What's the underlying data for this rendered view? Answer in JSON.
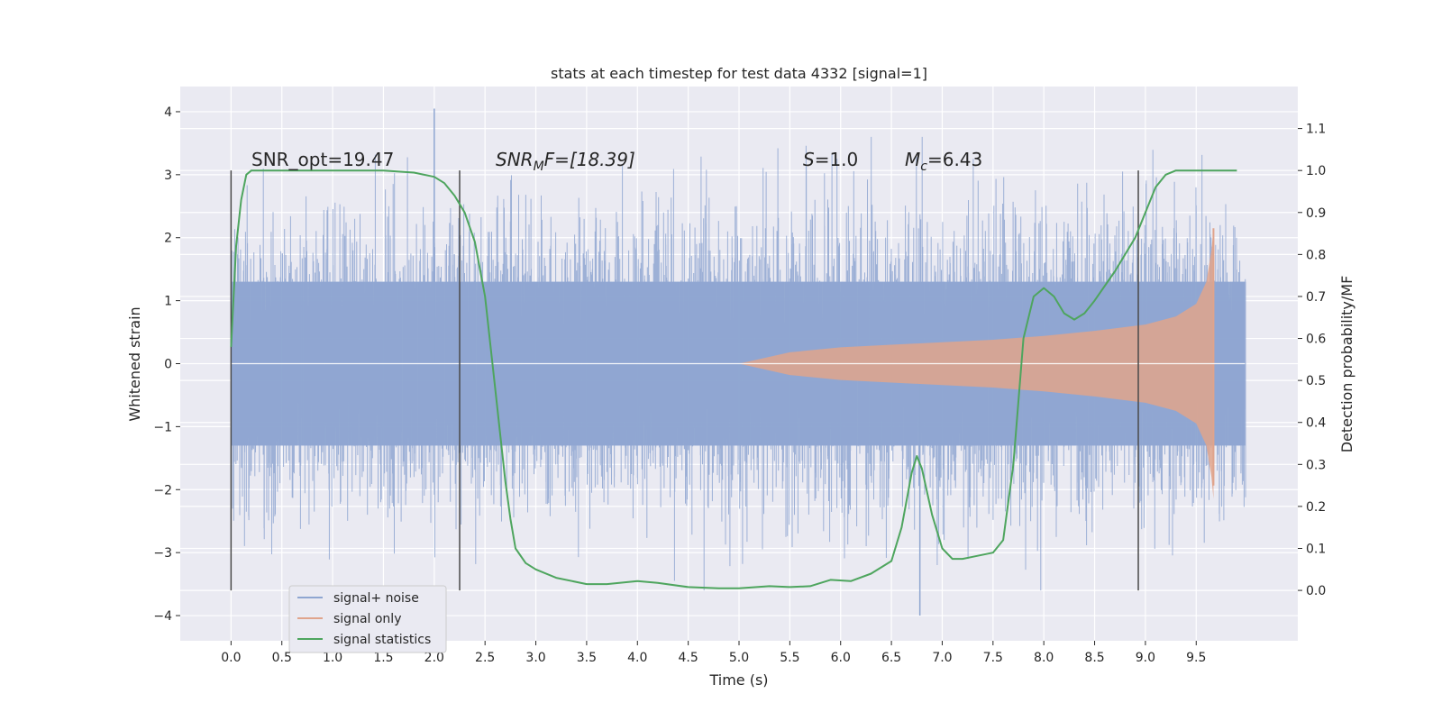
{
  "chart_data": {
    "type": "line",
    "title": "stats at each timestep for test data 4332 [signal=1]",
    "xlabel": "Time (s)",
    "ylabel": "Whitened strain",
    "ylabel_right": "Detection probability/MF",
    "xlim": [
      -0.5,
      10.5
    ],
    "ylim": [
      -4.4,
      4.4
    ],
    "ylim_right": [
      -0.12,
      1.2
    ],
    "x_ticks": [
      "0.0",
      "0.5",
      "1.0",
      "1.5",
      "2.0",
      "2.5",
      "3.0",
      "3.5",
      "4.0",
      "4.5",
      "5.0",
      "5.5",
      "6.0",
      "6.5",
      "7.0",
      "7.5",
      "8.0",
      "8.5",
      "9.0",
      "9.5"
    ],
    "x_tick_values": [
      0.0,
      0.5,
      1.0,
      1.5,
      2.0,
      2.5,
      3.0,
      3.5,
      4.0,
      4.5,
      5.0,
      5.5,
      6.0,
      6.5,
      7.0,
      7.5,
      8.0,
      8.5,
      9.0,
      9.5
    ],
    "y_ticks": [
      "−4",
      "−3",
      "−2",
      "−1",
      "0",
      "1",
      "2",
      "3",
      "4"
    ],
    "y_tick_values": [
      -4,
      -3,
      -2,
      -1,
      0,
      1,
      2,
      3,
      4
    ],
    "y_ticks_right": [
      "0.0",
      "0.1",
      "0.2",
      "0.3",
      "0.4",
      "0.5",
      "0.6",
      "0.7",
      "0.8",
      "0.9",
      "1.0",
      "1.1"
    ],
    "y_tick_values_right": [
      0.0,
      0.1,
      0.2,
      0.3,
      0.4,
      0.5,
      0.6,
      0.7,
      0.8,
      0.9,
      1.0,
      1.1
    ],
    "grid": true,
    "legend_position": "lower-left",
    "annotations": {
      "snr_opt": "SNR_opt=19.47",
      "snr_mf_main": "SNR",
      "snr_mf_sub": "M",
      "snr_mf_rest": "F=[18.39]",
      "s_main": "S",
      "s_rest": "=1.0",
      "mc_main": "M",
      "mc_sub": "c",
      "mc_rest": "=6.43"
    },
    "marker_lines_x": [
      0.0,
      2.25,
      8.93
    ],
    "series": [
      {
        "name": "signal+ noise",
        "color": "#8fa6d1",
        "axis": "left",
        "kind": "noise-band",
        "t_start": 0.0,
        "t_end": 9.98,
        "core_amplitude": 1.3,
        "typical_peaks": [
          -2.5,
          2.5
        ],
        "max_observed": 4.05,
        "min_observed": -4.0
      },
      {
        "name": "signal only",
        "color": "#e0a48c",
        "axis": "left",
        "kind": "chirp-envelope",
        "envelope": {
          "t": [
            5.0,
            5.5,
            6.0,
            6.5,
            7.0,
            7.5,
            8.0,
            8.5,
            9.0,
            9.3,
            9.5,
            9.6,
            9.65,
            9.67
          ],
          "amp": [
            0.0,
            0.18,
            0.26,
            0.3,
            0.34,
            0.38,
            0.44,
            0.52,
            0.62,
            0.75,
            0.95,
            1.3,
            1.8,
            2.15
          ]
        }
      },
      {
        "name": "signal statistics",
        "color": "#4ea55e",
        "axis": "right",
        "kind": "line",
        "x": [
          0.0,
          0.05,
          0.1,
          0.15,
          0.2,
          0.3,
          0.5,
          1.0,
          1.5,
          1.8,
          2.0,
          2.1,
          2.2,
          2.3,
          2.4,
          2.5,
          2.6,
          2.7,
          2.75,
          2.8,
          2.9,
          3.0,
          3.2,
          3.5,
          3.7,
          4.0,
          4.2,
          4.5,
          4.8,
          5.0,
          5.3,
          5.5,
          5.7,
          5.9,
          6.1,
          6.3,
          6.5,
          6.6,
          6.7,
          6.75,
          6.8,
          6.9,
          7.0,
          7.1,
          7.2,
          7.3,
          7.5,
          7.6,
          7.7,
          7.8,
          7.9,
          8.0,
          8.1,
          8.2,
          8.3,
          8.4,
          8.5,
          8.7,
          8.9,
          9.0,
          9.1,
          9.2,
          9.3,
          9.5,
          9.7,
          9.9
        ],
        "values": [
          0.58,
          0.82,
          0.93,
          0.99,
          1.0,
          1.0,
          1.0,
          1.0,
          1.0,
          0.995,
          0.985,
          0.97,
          0.94,
          0.9,
          0.83,
          0.7,
          0.48,
          0.26,
          0.17,
          0.1,
          0.065,
          0.05,
          0.03,
          0.015,
          0.015,
          0.022,
          0.018,
          0.008,
          0.005,
          0.005,
          0.01,
          0.008,
          0.01,
          0.025,
          0.022,
          0.04,
          0.07,
          0.15,
          0.28,
          0.32,
          0.29,
          0.18,
          0.1,
          0.075,
          0.075,
          0.08,
          0.09,
          0.12,
          0.3,
          0.6,
          0.7,
          0.72,
          0.7,
          0.66,
          0.645,
          0.66,
          0.69,
          0.76,
          0.84,
          0.9,
          0.96,
          0.99,
          1.0,
          1.0,
          1.0,
          1.0
        ]
      }
    ]
  }
}
